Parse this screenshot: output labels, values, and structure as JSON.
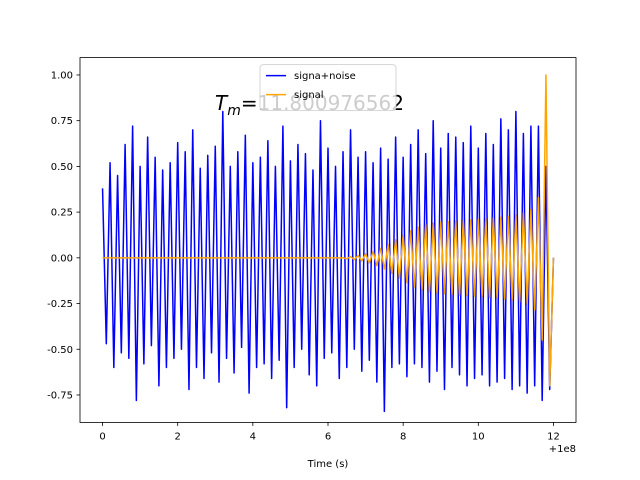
{
  "chart_data": {
    "type": "line",
    "x": [
      0,
      0.1,
      0.2,
      0.3,
      0.4,
      0.5,
      0.6,
      0.7,
      0.8,
      0.9,
      1,
      1.1,
      1.2,
      1.3,
      1.4,
      1.5,
      1.6,
      1.7,
      1.8,
      1.9,
      2,
      2.1,
      2.2,
      2.3,
      2.4,
      2.5,
      2.6,
      2.7,
      2.8,
      2.9,
      3,
      3.1,
      3.2,
      3.3,
      3.4,
      3.5,
      3.6,
      3.7,
      3.8,
      3.9,
      4,
      4.1,
      4.2,
      4.3,
      4.4,
      4.5,
      4.6,
      4.7,
      4.8,
      4.9,
      5,
      5.1,
      5.2,
      5.3,
      5.4,
      5.5,
      5.6,
      5.7,
      5.8,
      5.9,
      6,
      6.1,
      6.2,
      6.3,
      6.4,
      6.5,
      6.6,
      6.7,
      6.8,
      6.9,
      7,
      7.1,
      7.2,
      7.3,
      7.4,
      7.5,
      7.6,
      7.7,
      7.8,
      7.9,
      8,
      8.1,
      8.2,
      8.3,
      8.4,
      8.5,
      8.6,
      8.7,
      8.8,
      8.9,
      9,
      9.1,
      9.2,
      9.3,
      9.4,
      9.5,
      9.6,
      9.7,
      9.8,
      9.9,
      10,
      10.1,
      10.2,
      10.3,
      10.4,
      10.5,
      10.6,
      10.7,
      10.8,
      10.9,
      11,
      11.1,
      11.2,
      11.3,
      11.4,
      11.5,
      11.6,
      11.7,
      11.8,
      11.9,
      12
    ],
    "series": [
      {
        "name": "signa+noise",
        "color": "#0000ff",
        "values": [
          0.38,
          -0.47,
          0.52,
          -0.6,
          0.45,
          -0.52,
          0.62,
          -0.55,
          0.72,
          -0.78,
          0.5,
          -0.58,
          0.66,
          -0.48,
          0.55,
          -0.7,
          0.48,
          -0.6,
          0.52,
          -0.55,
          0.63,
          -0.5,
          0.58,
          -0.72,
          0.7,
          -0.6,
          0.49,
          -0.66,
          0.56,
          -0.52,
          0.61,
          -0.68,
          0.8,
          -0.55,
          0.5,
          -0.63,
          0.58,
          -0.49,
          0.67,
          -0.74,
          0.52,
          -0.6,
          0.55,
          -0.58,
          0.64,
          -0.66,
          0.5,
          -0.56,
          0.72,
          -0.82,
          0.53,
          -0.6,
          0.62,
          -0.5,
          0.57,
          -0.64,
          0.48,
          -0.7,
          0.75,
          -0.55,
          0.6,
          -0.52,
          0.5,
          -0.66,
          0.58,
          -0.6,
          0.7,
          -0.5,
          0.55,
          -0.62,
          0.58,
          -0.56,
          0.52,
          -0.68,
          0.6,
          -0.84,
          0.54,
          -0.6,
          0.66,
          -0.58,
          0.55,
          -0.65,
          0.62,
          -0.58,
          0.7,
          -0.6,
          0.57,
          -0.68,
          0.75,
          -0.62,
          0.6,
          -0.72,
          0.68,
          -0.6,
          0.66,
          -0.64,
          0.63,
          -0.7,
          0.72,
          -0.66,
          0.6,
          -0.64,
          0.68,
          -0.7,
          0.62,
          -0.68,
          0.76,
          -0.66,
          0.7,
          -0.72,
          0.8,
          -0.7,
          0.68,
          -0.74,
          0.72,
          -0.7,
          0.72,
          -0.78,
          0.5,
          -0.72,
          0
        ]
      },
      {
        "name": "signal",
        "color": "#ffa500",
        "values": [
          0,
          0,
          0,
          0,
          0,
          0,
          0,
          0,
          0,
          0,
          0,
          0,
          0,
          0,
          0,
          0,
          0,
          0,
          0,
          0,
          0,
          0,
          0,
          0,
          0,
          0,
          0,
          0,
          0,
          0,
          0,
          0,
          0,
          0,
          0,
          0,
          0,
          0,
          0,
          0,
          0,
          0,
          0,
          0,
          0,
          0,
          0,
          0,
          0,
          0,
          0,
          0,
          0,
          0,
          0,
          0,
          0,
          0,
          0,
          0,
          0,
          0,
          0,
          0,
          0,
          -0.005,
          0.007,
          -0.01,
          0.013,
          -0.017,
          0.022,
          -0.028,
          0.035,
          -0.043,
          0.052,
          -0.062,
          0.073,
          -0.085,
          0.098,
          -0.11,
          0.123,
          -0.136,
          0.148,
          -0.159,
          0.168,
          -0.176,
          0.182,
          -0.187,
          0.19,
          -0.193,
          0.195,
          -0.197,
          0.198,
          -0.2,
          0.201,
          -0.203,
          0.204,
          -0.206,
          0.207,
          -0.209,
          0.21,
          -0.212,
          0.214,
          -0.216,
          0.218,
          -0.22,
          0.222,
          -0.225,
          0.228,
          -0.231,
          0.235,
          -0.24,
          0.246,
          -0.254,
          0.265,
          -0.285,
          0.33,
          -0.45,
          1.0,
          -0.7,
          0
        ]
      }
    ],
    "xlabel": "Time (s)",
    "x_offset_label": "+1e8",
    "annotation": {
      "symbol": "T",
      "subscript": "m",
      "text": "=11.800976562"
    },
    "xlim": [
      -0.6,
      12.6
    ],
    "xticks": [
      0,
      2,
      4,
      6,
      8,
      10,
      12
    ],
    "ylim": [
      -0.9,
      1.095
    ],
    "yticks": [
      {
        "value": -0.75,
        "label": "-0.75"
      },
      {
        "value": -0.5,
        "label": "-0.50"
      },
      {
        "value": -0.25,
        "label": "-0.25"
      },
      {
        "value": 0,
        "label": "0.00"
      },
      {
        "value": 0.25,
        "label": "0.25"
      },
      {
        "value": 0.5,
        "label": "0.50"
      },
      {
        "value": 0.75,
        "label": "0.75"
      },
      {
        "value": 1,
        "label": "1.00"
      }
    ],
    "legend": "upper center"
  }
}
